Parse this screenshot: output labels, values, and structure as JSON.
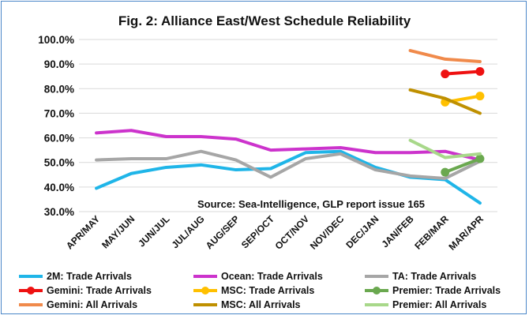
{
  "chart_data": {
    "type": "line",
    "title": "Fig. 2: Alliance East/West Schedule Reliability",
    "annotation": "Source: Sea-Intelligence, GLP report issue 165",
    "categories": [
      "APR/MAY",
      "MAY/JUN",
      "JUN/JUL",
      "JUL/AUG",
      "AUG/SEP",
      "SEP/OCT",
      "OCT/NOV",
      "NOV/DEC",
      "DEC/JAN",
      "JAN/FEB",
      "FEB/MAR",
      "MAR/APR"
    ],
    "ylim": [
      30,
      100
    ],
    "yticks": [
      "30.0%",
      "40.0%",
      "50.0%",
      "60.0%",
      "70.0%",
      "80.0%",
      "90.0%",
      "100.0%"
    ],
    "ytick_values": [
      30,
      40,
      50,
      60,
      70,
      80,
      90,
      100
    ],
    "grid": true,
    "legend_position": "bottom",
    "series": [
      {
        "name": "2M: Trade Arrivals",
        "color": "#1fb5e8",
        "marker": false,
        "values": [
          39.5,
          45.5,
          48,
          49,
          47,
          47.5,
          54,
          54.5,
          48,
          44,
          43,
          33.5
        ]
      },
      {
        "name": "Ocean: Trade Arrivals",
        "color": "#cc33cc",
        "marker": false,
        "values": [
          62,
          63,
          60.5,
          60.5,
          59.5,
          55,
          55.5,
          56,
          54,
          54,
          54.5,
          51
        ]
      },
      {
        "name": "TA: Trade Arrivals",
        "color": "#a6a6a6",
        "marker": false,
        "values": [
          51,
          51.5,
          51.5,
          54.5,
          51,
          44,
          51.5,
          53.5,
          47,
          44.5,
          43.5,
          50.5
        ]
      },
      {
        "name": "Gemini: Trade Arrivals",
        "color": "#ee1111",
        "marker": true,
        "values": [
          null,
          null,
          null,
          null,
          null,
          null,
          null,
          null,
          null,
          null,
          86,
          87
        ]
      },
      {
        "name": "MSC: Trade Arrivals",
        "color": "#ffc000",
        "marker": true,
        "values": [
          null,
          null,
          null,
          null,
          null,
          null,
          null,
          null,
          null,
          null,
          74.5,
          77
        ]
      },
      {
        "name": "Premier: Trade Arrivals",
        "color": "#6aa84f",
        "marker": true,
        "values": [
          null,
          null,
          null,
          null,
          null,
          null,
          null,
          null,
          null,
          null,
          46,
          51.5
        ]
      },
      {
        "name": "Gemini: All Arrivals",
        "color": "#f08a4b",
        "marker": false,
        "values": [
          null,
          null,
          null,
          null,
          null,
          null,
          null,
          null,
          null,
          95.5,
          92,
          91
        ]
      },
      {
        "name": "MSC: All Arrivals",
        "color": "#bf9000",
        "marker": false,
        "values": [
          null,
          null,
          null,
          null,
          null,
          null,
          null,
          null,
          null,
          79.5,
          76,
          70
        ]
      },
      {
        "name": "Premier: All Arrivals",
        "color": "#a8d88a",
        "marker": false,
        "values": [
          null,
          null,
          null,
          null,
          null,
          null,
          null,
          null,
          null,
          59,
          52,
          53.5
        ]
      }
    ]
  }
}
